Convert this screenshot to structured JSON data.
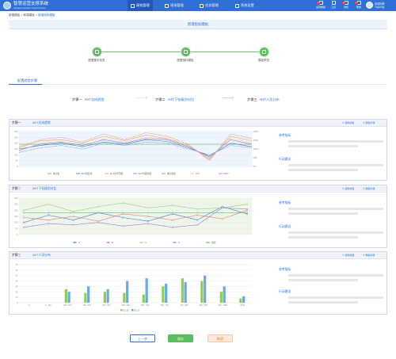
{
  "app": {
    "title": "智慧运营支撑系统",
    "subtitle": "Intelligent Operation Support System"
  },
  "nav": [
    {
      "label": "绩效管理",
      "active": true
    },
    {
      "label": "现场管理",
      "active": false
    },
    {
      "label": "任务管理",
      "active": false
    },
    {
      "label": "系统设置",
      "active": false
    }
  ],
  "tools": [
    {
      "label": "运营看板",
      "badge": "1"
    },
    {
      "label": "工具",
      "badge": ""
    },
    {
      "label": "通知",
      "badge": "1"
    },
    {
      "label": "帮助",
      "badge": "1"
    }
  ],
  "user": {
    "greeting": "欢迎回来",
    "name": "Yoyonng"
  },
  "breadcrumb": {
    "parent": "新建模板 > 新建模板 > ",
    "current": "新增指标模板"
  },
  "page_title": "新增指标模板",
  "stepper": [
    {
      "label": "配置基本信息"
    },
    {
      "label": "配置指标模板"
    },
    {
      "label": "模板预览"
    }
  ],
  "section_title": "配置趋势步骤",
  "flow": [
    {
      "key": "步骤一",
      "value": "AHT总成趋势"
    },
    {
      "key": "步骤二",
      "value": "AHT下钻级别对比"
    },
    {
      "key": "步骤三",
      "value": "AHT人员分布"
    }
  ],
  "panel_actions": {
    "edit": "使用模板",
    "delete": "删除步骤"
  },
  "side_labels": {
    "ref": "参考指标",
    "analysis": "行动建议"
  },
  "panels": [
    {
      "step": "步骤一",
      "name": "AHT总成趋势"
    },
    {
      "step": "步骤二",
      "name": "AHT下钻级别对比"
    },
    {
      "step": "步骤三",
      "name": "AHT人员分布"
    }
  ],
  "buttons": {
    "prev": "上一步",
    "save": "保存",
    "cancel": "取消"
  },
  "colors": {
    "primary": "#2f6fd6",
    "green": "#5bbd5e",
    "blue_bar": "#6aa8ea"
  },
  "chart_data": [
    {
      "type": "line",
      "title": "AHT总成趋势",
      "y_left_ticks": [
        "0",
        "50",
        "100",
        "150",
        "200",
        "250",
        "300"
      ],
      "y_right_ticks": [
        "0%",
        "50%",
        "100%",
        "150%",
        "200%"
      ],
      "legend": [
        "总标准",
        "AHT目标值",
        "AHT去年同期",
        "AHT同期均值",
        "总标准线",
        "YOY",
        "MOY"
      ],
      "series": [
        {
          "name": "总标准",
          "color": "#5bbd5e",
          "values": [
            190,
            190,
            190,
            190,
            190,
            190,
            190,
            190,
            190,
            190,
            190,
            190
          ]
        },
        {
          "name": "AHT目标值",
          "color": "#3b73d6",
          "values": [
            150,
            180,
            200,
            170,
            210,
            190,
            230,
            215,
            160,
            90,
            200,
            170
          ]
        },
        {
          "name": "AHT去年同期",
          "color": "#f2a257",
          "values": [
            160,
            220,
            230,
            200,
            260,
            220,
            270,
            240,
            180,
            60,
            260,
            220
          ]
        },
        {
          "name": "AHT同期均值",
          "color": "#8e7cd8",
          "values": [
            140,
            190,
            210,
            180,
            230,
            200,
            240,
            230,
            170,
            80,
            230,
            190
          ]
        },
        {
          "name": "总标准线",
          "color": "#5a8fe6",
          "values": [
            120,
            160,
            180,
            150,
            200,
            180,
            210,
            200,
            150,
            100,
            180,
            160
          ]
        },
        {
          "name": "YOY",
          "color": "#f5b77a",
          "values": [
            130,
            200,
            215,
            165,
            240,
            205,
            250,
            235,
            175,
            70,
            245,
            200
          ]
        },
        {
          "name": "MOY",
          "color": "#e57373",
          "values": [
            170,
            230,
            250,
            210,
            280,
            230,
            290,
            260,
            190,
            50,
            280,
            240
          ]
        }
      ],
      "ylim": [
        0,
        300
      ]
    },
    {
      "type": "line",
      "title": "AHT下钻级别对比",
      "y_ticks": [
        "0",
        "50",
        "100",
        "150",
        "200",
        "250",
        "300"
      ],
      "legend": [
        "A",
        "B",
        "C",
        "D",
        "目标"
      ],
      "series": [
        {
          "name": "A",
          "color": "#3b73d6",
          "values": [
            100,
            160,
            120,
            180,
            140,
            110,
            170,
            120,
            230,
            170
          ]
        },
        {
          "name": "B",
          "color": "#e57373",
          "values": [
            140,
            120,
            150,
            110,
            170,
            150,
            120,
            160,
            130,
            200
          ]
        },
        {
          "name": "C",
          "color": "#9ccc65",
          "values": [
            200,
            250,
            190,
            230,
            260,
            220,
            240,
            210,
            220,
            250
          ]
        },
        {
          "name": "D",
          "color": "#8e7cd8",
          "values": [
            60,
            90,
            80,
            100,
            70,
            90,
            60,
            80,
            220,
            210
          ]
        },
        {
          "name": "目标",
          "color": "#5bbd5e",
          "values": [
            180,
            180,
            180,
            180,
            180,
            180,
            180,
            180,
            180,
            180
          ]
        }
      ],
      "ylim": [
        0,
        300
      ]
    },
    {
      "type": "bar",
      "title": "AHT人员分布",
      "categories": [
        "<0",
        "0 - 100",
        "100 - 200",
        "200 - 300",
        "300 - 400",
        "400 - 500",
        "500 - 600",
        "600 - 700",
        "700 - 800",
        "800 - 900",
        "900 - 1000",
        ">1000"
      ],
      "y_ticks": [
        "0",
        "10",
        "20",
        "30",
        "40",
        "50",
        "60",
        "70"
      ],
      "series": [
        {
          "name": "02.15",
          "color": "#8bcf55",
          "values": [
            0,
            0,
            25,
            18,
            20,
            18,
            15,
            30,
            45,
            40,
            20,
            8
          ]
        },
        {
          "name": "02.15",
          "color": "#6aa8ea",
          "values": [
            0,
            0,
            20,
            30,
            25,
            40,
            45,
            35,
            38,
            50,
            30,
            12
          ]
        }
      ],
      "ylim": [
        0,
        70
      ]
    }
  ]
}
